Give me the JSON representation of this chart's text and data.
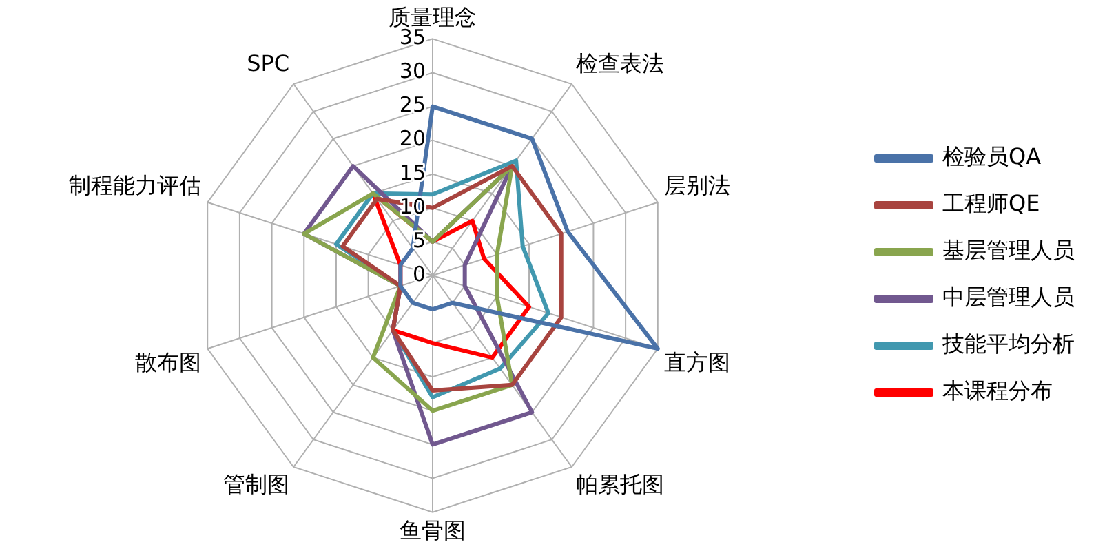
{
  "chart_data": {
    "type": "radar",
    "categories": [
      "质量理念",
      "检查表法",
      "层别法",
      "直方图",
      "帕累托图",
      "鱼骨图",
      "管制图",
      "散布图",
      "制程能力评估",
      "SPC"
    ],
    "series": [
      {
        "name": "检验员QA",
        "color": "#4a72a8",
        "values": [
          25,
          25,
          21,
          35,
          5,
          5,
          5,
          5,
          5,
          5
        ]
      },
      {
        "name": "工程师QE",
        "color": "#a8443f",
        "values": [
          10,
          20,
          20,
          20,
          20,
          17,
          10,
          5,
          14,
          14
        ]
      },
      {
        "name": "基层管理人员",
        "color": "#89a54e",
        "values": [
          5,
          20,
          10,
          10,
          20,
          20,
          15,
          5,
          20,
          15
        ]
      },
      {
        "name": "中层管理人员",
        "color": "#71588f",
        "values": [
          5,
          20,
          5,
          5,
          25,
          25,
          10,
          5,
          20,
          20
        ]
      },
      {
        "name": "技能平均分析",
        "color": "#4198af",
        "values": [
          12,
          21,
          14,
          18,
          17,
          18,
          10,
          5,
          15,
          15
        ]
      },
      {
        "name": "本课程分布",
        "color": "#ff0000",
        "values": [
          5,
          10,
          8,
          15,
          15,
          10,
          10,
          5,
          5,
          15
        ]
      }
    ],
    "ylim": [
      0,
      35
    ],
    "yticks": [
      0,
      5,
      10,
      15,
      20,
      25,
      30,
      35
    ],
    "grid": true,
    "legend": "right",
    "marker": "none",
    "line_style": "solid"
  }
}
